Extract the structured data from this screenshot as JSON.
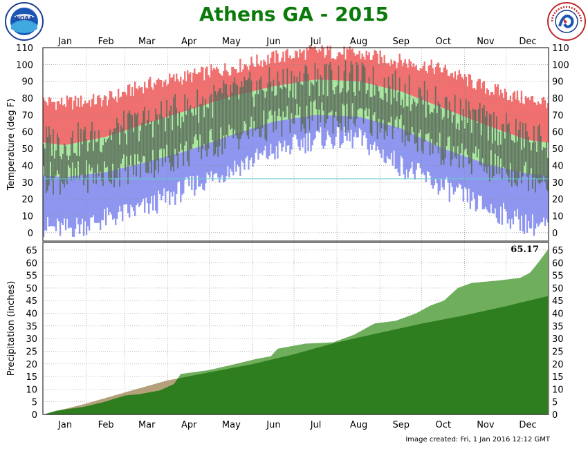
{
  "header": {
    "title": "Athens GA - 2015",
    "left_logo": {
      "icon": "noaa-logo",
      "text": "NOAA"
    },
    "right_logo": {
      "icon": "nws-logo",
      "text": "NATIONAL WEATHER SERVICE"
    }
  },
  "footer": {
    "created": "Image created: Fri, 1 Jan 2016 12:12 GMT"
  },
  "colors": {
    "record_high": "#f07070",
    "normal_range": "#aae8a0",
    "record_low": "#8e96f0",
    "actual_range": "#5a6a5a",
    "freezing_line": "#66cccc",
    "precip_actual": "#2e7d1f",
    "precip_above": "#6fae5c",
    "precip_below": "#b4a07a",
    "title": "#0a7a0a"
  },
  "chart_data": [
    {
      "type": "area",
      "ylabel": "Temperature (deg F)",
      "ylim": [
        -5,
        110
      ],
      "yticks": [
        0,
        10,
        20,
        30,
        40,
        50,
        60,
        70,
        80,
        90,
        100,
        110
      ],
      "months": [
        "Jan",
        "Feb",
        "Mar",
        "Apr",
        "May",
        "Jun",
        "Jul",
        "Aug",
        "Sep",
        "Oct",
        "Nov",
        "Dec"
      ],
      "freezing_line": 32,
      "grid": true,
      "monthly_normals": [
        {
          "month": "Jan",
          "normal_high": 52,
          "normal_low": 33,
          "record_high": 77,
          "record_low": 2
        },
        {
          "month": "Feb",
          "normal_high": 57,
          "normal_low": 36,
          "record_high": 79,
          "record_low": 8
        },
        {
          "month": "Mar",
          "normal_high": 65,
          "normal_low": 42,
          "record_high": 88,
          "record_low": 15
        },
        {
          "month": "Apr",
          "normal_high": 73,
          "normal_low": 49,
          "record_high": 93,
          "record_low": 27
        },
        {
          "month": "May",
          "normal_high": 81,
          "normal_low": 58,
          "record_high": 98,
          "record_low": 38
        },
        {
          "month": "Jun",
          "normal_high": 87,
          "normal_low": 66,
          "record_high": 104,
          "record_low": 48
        },
        {
          "month": "Jul",
          "normal_high": 91,
          "normal_low": 70,
          "record_high": 108,
          "record_low": 56
        },
        {
          "month": "Aug",
          "normal_high": 90,
          "normal_low": 69,
          "record_high": 106,
          "record_low": 56
        },
        {
          "month": "Sep",
          "normal_high": 84,
          "normal_low": 62,
          "record_high": 102,
          "record_low": 40
        },
        {
          "month": "Oct",
          "normal_high": 74,
          "normal_low": 50,
          "record_high": 97,
          "record_low": 27
        },
        {
          "month": "Nov",
          "normal_high": 64,
          "normal_low": 41,
          "record_high": 86,
          "record_low": 15
        },
        {
          "month": "Dec",
          "normal_high": 55,
          "normal_low": 35,
          "record_high": 79,
          "record_low": 5
        }
      ]
    },
    {
      "type": "area",
      "ylabel": "Precipitation (inches)",
      "ylim": [
        0,
        68
      ],
      "yticks": [
        0,
        5,
        10,
        15,
        20,
        25,
        30,
        35,
        40,
        45,
        50,
        55,
        60,
        65
      ],
      "total_label": "65.17",
      "series": [
        {
          "name": "",
          "points": [
            {
              "day": 1,
              "value": 0.0
            },
            {
              "day": 10,
              "value": 1.5
            },
            {
              "day": 30,
              "value": 3.0
            },
            {
              "day": 45,
              "value": 5.0
            },
            {
              "day": 60,
              "value": 7.5
            },
            {
              "day": 70,
              "value": 8.0
            },
            {
              "day": 85,
              "value": 9.5
            },
            {
              "day": 95,
              "value": 12.0
            },
            {
              "day": 100,
              "value": 16.0
            },
            {
              "day": 120,
              "value": 17.5
            },
            {
              "day": 140,
              "value": 20.0
            },
            {
              "day": 155,
              "value": 22.0
            },
            {
              "day": 165,
              "value": 23.0
            },
            {
              "day": 170,
              "value": 26.0
            },
            {
              "day": 190,
              "value": 28.0
            },
            {
              "day": 210,
              "value": 28.5
            },
            {
              "day": 225,
              "value": 31.5
            },
            {
              "day": 240,
              "value": 36.0
            },
            {
              "day": 255,
              "value": 37.0
            },
            {
              "day": 270,
              "value": 40.0
            },
            {
              "day": 280,
              "value": 43.0
            },
            {
              "day": 290,
              "value": 45.0
            },
            {
              "day": 300,
              "value": 50.0
            },
            {
              "day": 310,
              "value": 52.0
            },
            {
              "day": 330,
              "value": 53.0
            },
            {
              "day": 345,
              "value": 54.0
            },
            {
              "day": 352,
              "value": 56.0
            },
            {
              "day": 358,
              "value": 60.0
            },
            {
              "day": 365,
              "value": 65.17
            }
          ]
        },
        {
          "name": "",
          "points": [
            {
              "day": 1,
              "value": 0.0
            },
            {
              "day": 31,
              "value": 4.2
            },
            {
              "day": 59,
              "value": 8.6
            },
            {
              "day": 90,
              "value": 13.4
            },
            {
              "day": 120,
              "value": 16.6
            },
            {
              "day": 151,
              "value": 19.8
            },
            {
              "day": 181,
              "value": 23.7
            },
            {
              "day": 212,
              "value": 28.4
            },
            {
              "day": 243,
              "value": 32.2
            },
            {
              "day": 273,
              "value": 35.8
            },
            {
              "day": 304,
              "value": 39.1
            },
            {
              "day": 334,
              "value": 42.7
            },
            {
              "day": 365,
              "value": 46.8
            }
          ]
        }
      ]
    }
  ]
}
